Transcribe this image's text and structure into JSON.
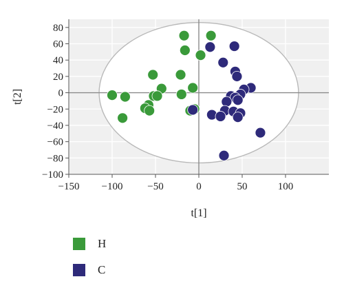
{
  "chart_data": {
    "type": "scatter",
    "xlabel": "t[1]",
    "ylabel": "t[2]",
    "xlim": [
      -150,
      150
    ],
    "ylim": [
      -100,
      90
    ],
    "xticks": [
      -150,
      -100,
      -50,
      0,
      50,
      100
    ],
    "yticks": [
      -100,
      -80,
      -60,
      -40,
      -20,
      0,
      20,
      40,
      60,
      80
    ],
    "grid": true,
    "legend_position": "bottom-left",
    "ellipse": {
      "center": [
        0,
        0
      ],
      "rx": 115,
      "ry": 86
    },
    "series": [
      {
        "name": "H",
        "color": "#3a9a3a",
        "points": [
          [
            -17,
            70
          ],
          [
            14,
            70
          ],
          [
            -16,
            52
          ],
          [
            2,
            46
          ],
          [
            -53,
            22
          ],
          [
            -21,
            22
          ],
          [
            -43,
            5
          ],
          [
            -7,
            6
          ],
          [
            -100,
            -3
          ],
          [
            -85,
            -5
          ],
          [
            -52,
            -4
          ],
          [
            -48,
            -4
          ],
          [
            -20,
            -2
          ],
          [
            -58,
            -15
          ],
          [
            -62,
            -19
          ],
          [
            -57,
            -22
          ],
          [
            -5,
            -20
          ],
          [
            -10,
            -22
          ],
          [
            -88,
            -31
          ]
        ]
      },
      {
        "name": "C",
        "color": "#2e2a7a",
        "points": [
          [
            13,
            56
          ],
          [
            41,
            57
          ],
          [
            28,
            37
          ],
          [
            42,
            26
          ],
          [
            44,
            20
          ],
          [
            60,
            6
          ],
          [
            52,
            4
          ],
          [
            37,
            -4
          ],
          [
            48,
            -2
          ],
          [
            42,
            -6
          ],
          [
            45,
            -9
          ],
          [
            32,
            -11
          ],
          [
            -7,
            -21
          ],
          [
            15,
            -27
          ],
          [
            30,
            -22
          ],
          [
            25,
            -29
          ],
          [
            40,
            -23
          ],
          [
            48,
            -25
          ],
          [
            45,
            -30
          ],
          [
            71,
            -49
          ],
          [
            29,
            -77
          ]
        ]
      }
    ]
  },
  "legend": {
    "items": [
      {
        "label": "H",
        "color": "#3a9a3a"
      },
      {
        "label": "C",
        "color": "#2e2a7a"
      }
    ]
  }
}
